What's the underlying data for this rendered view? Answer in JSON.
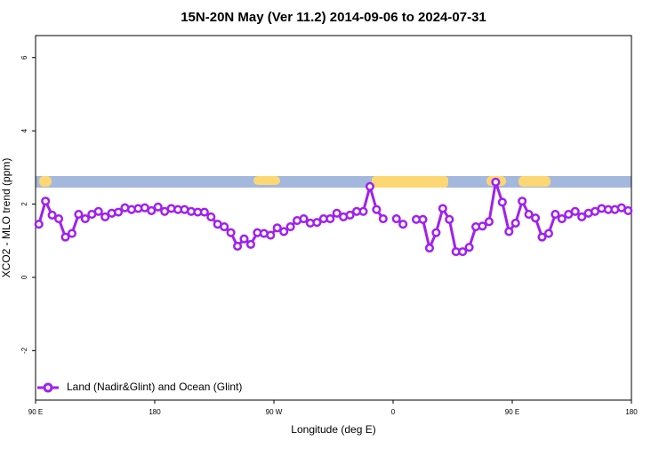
{
  "chart_data": {
    "type": "line",
    "title": "15N-20N May (Ver 11.2)   2014-09-06 to 2024-07-31",
    "x_label": "Longitude (deg E)",
    "y_label": "XCO2 - MLO trend (ppm)",
    "xlim": [
      90,
      540
    ],
    "xticks": [
      {
        "value": 90,
        "label": "90 E"
      },
      180,
      {
        "value": 270,
        "label": "90 W"
      },
      {
        "value": 360,
        "label": "0"
      },
      {
        "value": 450,
        "label": "90 E"
      },
      {
        "value": 540,
        "label": "180"
      }
    ],
    "ylim": [
      -3.35,
      6.6
    ],
    "yticks": [
      -2,
      0,
      2,
      4,
      6
    ],
    "legend": "bottom-left",
    "x": [
      92.5,
      97.5,
      102.5,
      107.5,
      112.5,
      117.5,
      122.5,
      127.5,
      132.5,
      137.5,
      142.5,
      147.5,
      152.5,
      157.5,
      162.5,
      167.5,
      172.5,
      177.5,
      182.5,
      187.5,
      192.5,
      197.5,
      202.5,
      207.5,
      212.5,
      217.5,
      222.5,
      227.5,
      232.5,
      237.5,
      242.5,
      247.5,
      252.5,
      257.5,
      262.5,
      267.5,
      272.5,
      277.5,
      282.5,
      287.5,
      292.5,
      297.5,
      302.5,
      307.5,
      312.5,
      317.5,
      322.5,
      327.5,
      332.5,
      337.5,
      342.5,
      347.5,
      352.5,
      357.5,
      362.5,
      367.5,
      372.5,
      377.5,
      382.5,
      387.5,
      392.5,
      397.5,
      402.5,
      407.5,
      412.5,
      417.5,
      422.5,
      427.5,
      432.5,
      437.5,
      442.5,
      447.5,
      452.5,
      457.5,
      462.5,
      467.5,
      472.5,
      477.5,
      482.5,
      487.5,
      492.5,
      497.5,
      502.5,
      507.5,
      512.5,
      517.5,
      522.5,
      527.5,
      532.5,
      537.5
    ],
    "series": [
      {
        "name": "Land (Nadir&Glint) and Ocean (Glint)",
        "color": "#a020f0",
        "values": [
          1.45,
          2.08,
          1.7,
          1.6,
          1.1,
          1.2,
          1.72,
          1.6,
          1.72,
          1.8,
          1.65,
          1.75,
          1.78,
          1.9,
          1.85,
          1.88,
          1.9,
          1.82,
          1.92,
          1.8,
          1.88,
          1.85,
          1.85,
          1.8,
          1.78,
          1.78,
          1.65,
          1.45,
          1.38,
          1.22,
          0.85,
          1.05,
          0.9,
          1.22,
          1.2,
          1.15,
          1.35,
          1.25,
          1.38,
          1.55,
          1.6,
          1.48,
          1.5,
          1.6,
          1.6,
          1.75,
          1.65,
          1.7,
          1.8,
          1.8,
          2.48,
          1.85,
          1.6,
          null,
          1.6,
          1.45,
          null,
          1.58,
          1.58,
          0.8,
          1.22,
          1.88,
          1.58,
          0.7,
          0.7,
          0.82,
          1.38,
          1.4,
          1.52,
          2.6,
          2.05,
          1.25,
          1.48,
          2.08,
          1.72,
          1.62,
          1.1,
          1.2,
          1.72,
          1.6,
          1.72,
          1.8,
          1.65,
          1.75,
          1.8,
          1.88,
          1.85,
          1.85,
          1.9,
          1.82
        ]
      }
    ]
  }
}
